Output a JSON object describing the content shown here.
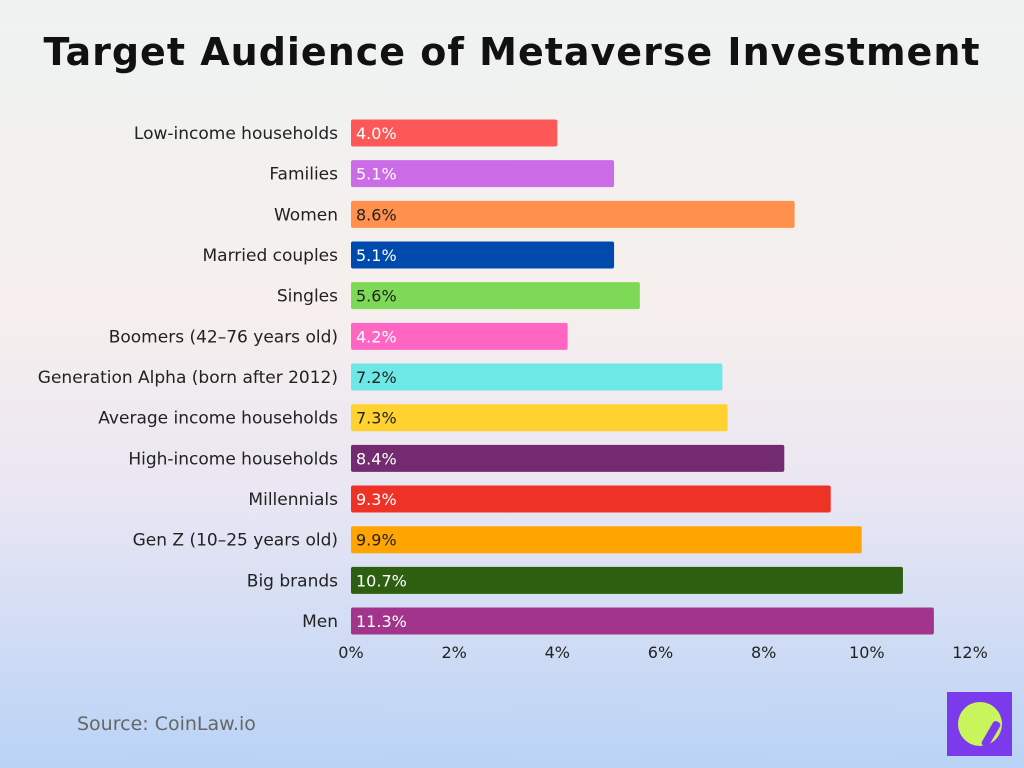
{
  "chart_data": {
    "type": "bar",
    "orientation": "horizontal",
    "title": "Target Audience of Metaverse Investment",
    "categories": [
      "Low-income households",
      "Families",
      "Women",
      "Married couples",
      "Singles",
      "Boomers (42–76 years old)",
      "Generation Alpha (born after 2012)",
      "Average income households",
      "High-income households",
      "Millennials",
      "Gen Z (10–25 years old)",
      "Big brands",
      "Men"
    ],
    "values": [
      4.0,
      5.1,
      8.6,
      5.1,
      5.6,
      4.2,
      7.2,
      7.3,
      8.4,
      9.3,
      9.9,
      10.7,
      11.3
    ],
    "data_labels": [
      "4.0%",
      "5.1%",
      "8.6%",
      "5.1%",
      "5.6%",
      "4.2%",
      "7.2%",
      "7.3%",
      "8.4%",
      "9.3%",
      "9.9%",
      "10.7%",
      "11.3%"
    ],
    "colors": [
      "#fd5858",
      "#cb6ce6",
      "#ff914d",
      "#004aad",
      "#7ed957",
      "#ff66c4",
      "#6ee7e7",
      "#ffd230",
      "#742a6e",
      "#ee3226",
      "#ffa400",
      "#2e5f10",
      "#a2348c"
    ],
    "label_colors": [
      "#ffffff",
      "#ffffff",
      "#222222",
      "#ffffff",
      "#222222",
      "#ffffff",
      "#222222",
      "#222222",
      "#ffffff",
      "#ffffff",
      "#222222",
      "#ffffff",
      "#ffffff"
    ],
    "xlim": [
      0,
      12
    ],
    "xticks": [
      "0%",
      "2%",
      "4%",
      "6%",
      "8%",
      "10%",
      "12%"
    ],
    "xlabel": "",
    "ylabel": "",
    "grid": false,
    "legend": "none"
  },
  "source": "Source: CoinLaw.io",
  "logo": {
    "icon": "compass-icon",
    "background": "#7c3aed",
    "accent": "#c8f55c"
  }
}
